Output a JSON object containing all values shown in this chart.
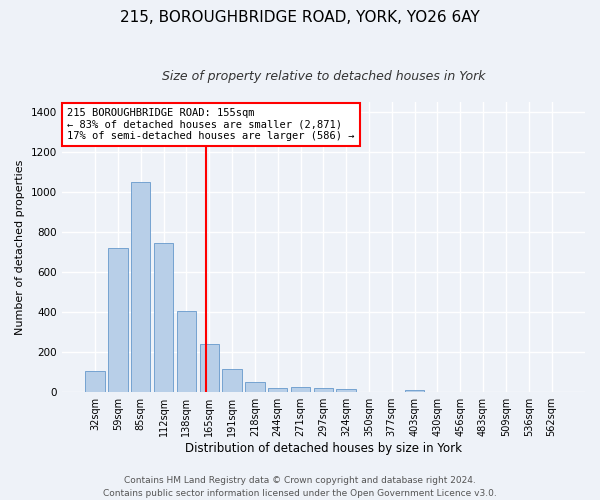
{
  "title1": "215, BOROUGHBRIDGE ROAD, YORK, YO26 6AY",
  "title2": "Size of property relative to detached houses in York",
  "xlabel": "Distribution of detached houses by size in York",
  "ylabel": "Number of detached properties",
  "footnote1": "Contains HM Land Registry data © Crown copyright and database right 2024.",
  "footnote2": "Contains public sector information licensed under the Open Government Licence v3.0.",
  "categories": [
    "32sqm",
    "59sqm",
    "85sqm",
    "112sqm",
    "138sqm",
    "165sqm",
    "191sqm",
    "218sqm",
    "244sqm",
    "271sqm",
    "297sqm",
    "324sqm",
    "350sqm",
    "377sqm",
    "403sqm",
    "430sqm",
    "456sqm",
    "483sqm",
    "509sqm",
    "536sqm",
    "562sqm"
  ],
  "values": [
    107,
    720,
    1050,
    748,
    405,
    240,
    115,
    50,
    20,
    28,
    22,
    17,
    0,
    0,
    12,
    0,
    0,
    0,
    0,
    0,
    0
  ],
  "bar_color": "#b8cfe8",
  "bar_edge_color": "#6699cc",
  "vline_x_index": 4.85,
  "vline_color": "red",
  "annotation_text": "215 BOROUGHBRIDGE ROAD: 155sqm\n← 83% of detached houses are smaller (2,871)\n17% of semi-detached houses are larger (586) →",
  "annotation_box_color": "white",
  "annotation_box_edge_color": "red",
  "ylim": [
    0,
    1450
  ],
  "yticks": [
    0,
    200,
    400,
    600,
    800,
    1000,
    1200,
    1400
  ],
  "background_color": "#eef2f8",
  "grid_color": "white",
  "title1_fontsize": 11,
  "title2_fontsize": 9,
  "axis_label_fontsize": 8,
  "tick_fontsize": 7,
  "footnote_fontsize": 6.5
}
